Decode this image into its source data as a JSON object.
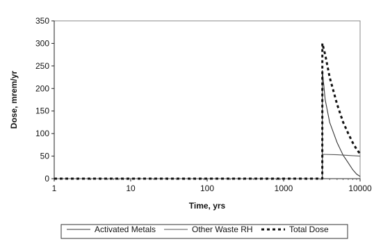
{
  "chart_data": {
    "type": "line",
    "title": "",
    "xlabel": "Time, yrs",
    "ylabel": "Dose, mrem/yr",
    "x_scale": "log",
    "xlim": [
      1,
      10000
    ],
    "ylim": [
      0,
      350
    ],
    "x_ticks": [
      "1",
      "10",
      "100",
      "1000",
      "10000"
    ],
    "y_ticks": [
      "0",
      "50",
      "100",
      "150",
      "200",
      "250",
      "300",
      "350"
    ],
    "grid": false,
    "legend_position": "bottom",
    "series": [
      {
        "name": "Activated Metals",
        "style": "solid-thin",
        "color": "#333333",
        "points": [
          [
            1,
            0
          ],
          [
            3200,
            0
          ],
          [
            3210,
            240
          ],
          [
            3500,
            175
          ],
          [
            4000,
            125
          ],
          [
            5000,
            80
          ],
          [
            6000,
            52
          ],
          [
            7000,
            35
          ],
          [
            8000,
            20
          ],
          [
            9000,
            10
          ],
          [
            10000,
            5
          ]
        ]
      },
      {
        "name": "Other Waste RH",
        "style": "solid-thin",
        "color": "#555555",
        "points": [
          [
            1,
            0
          ],
          [
            3200,
            0
          ],
          [
            3210,
            54
          ],
          [
            5000,
            53
          ],
          [
            8000,
            51
          ],
          [
            10000,
            50
          ]
        ]
      },
      {
        "name": "Total Dose",
        "style": "dashed-bold",
        "color": "#111111",
        "points": [
          [
            1,
            0
          ],
          [
            3200,
            0
          ],
          [
            3210,
            300
          ],
          [
            3500,
            275
          ],
          [
            4000,
            225
          ],
          [
            5000,
            165
          ],
          [
            6000,
            125
          ],
          [
            7000,
            100
          ],
          [
            8000,
            80
          ],
          [
            9000,
            65
          ],
          [
            10000,
            55
          ]
        ]
      }
    ]
  }
}
